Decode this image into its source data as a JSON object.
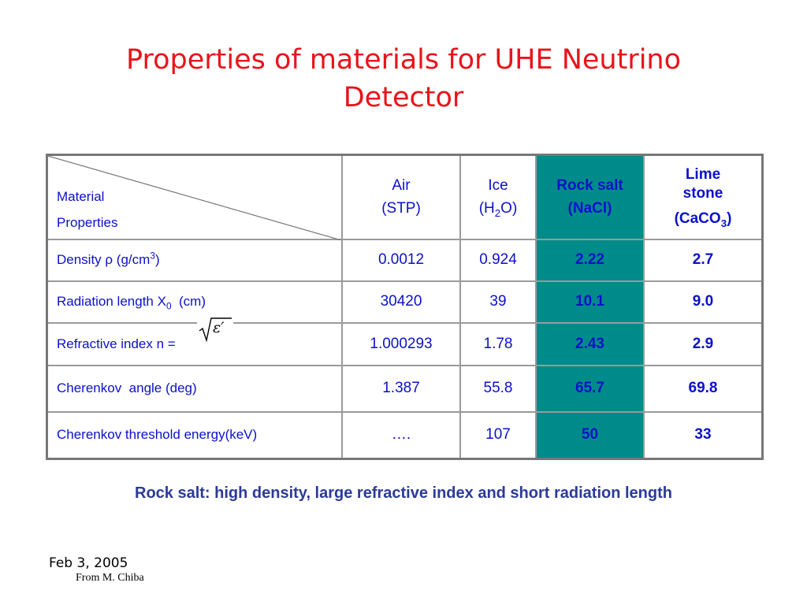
{
  "slide": {
    "title_line1": "Properties of materials for UHE Neutrino",
    "title_line2": "Detector",
    "summary": "Rock salt: high density, large refractive index and short radiation length",
    "date": "Feb 3, 2005",
    "credit": "From M. Chiba"
  },
  "table": {
    "corner_top": "Material",
    "corner_bottom": "Properties",
    "columns": [
      {
        "line1": "Air",
        "line2": "(STP)"
      },
      {
        "line1": "Ice",
        "line2_pre": "(H",
        "line2_sub": "2",
        "line2_post": "O)"
      },
      {
        "line1": "Rock salt",
        "line2": "(NaCl)"
      },
      {
        "line1": "Lime",
        "line1b": "stone",
        "line2_pre": "(CaCO",
        "line2_sub": "3",
        "line2_post": ")"
      }
    ],
    "rows": [
      {
        "label_pre": "Density ρ (g/cm",
        "label_sup": "3",
        "label_post": ")",
        "values": [
          "0.0012",
          "0.924",
          "2.22",
          "2.7"
        ]
      },
      {
        "label_pre": "Radiation length X",
        "label_sub": "0",
        "label_post": "  (cm)",
        "values": [
          "30420",
          "39",
          "10.1",
          "9.0"
        ]
      },
      {
        "label": "Refractive index n =",
        "values": [
          "1.000293",
          "1.78",
          "2.43",
          "2.9"
        ]
      },
      {
        "label": "Cherenkov  angle (deg)",
        "values": [
          "1.387",
          "55.8",
          "65.7",
          "69.8"
        ]
      },
      {
        "label": "Cherenkov threshold energy(keV)",
        "values": [
          "….",
          "107",
          "50",
          "33"
        ]
      }
    ],
    "formula": "√ε′",
    "highlight_color": "#008b8b"
  }
}
